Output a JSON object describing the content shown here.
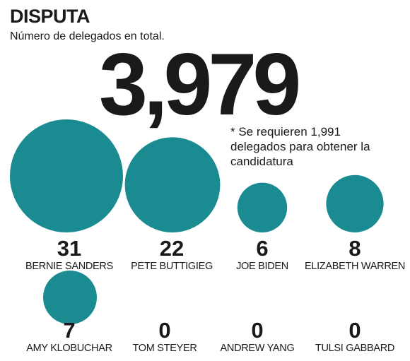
{
  "header": {
    "title": "DISPUTA",
    "subtitle": "Número de delegados en total.",
    "total": "3,979",
    "note": "* Se requieren 1,991 delegados para obtener la candidatura"
  },
  "chart_data": {
    "type": "bubble",
    "color": "#1a8c91",
    "candidates": [
      {
        "name": "BERNIE SANDERS",
        "label": "31",
        "value": 31
      },
      {
        "name": "PETE BUTTIGIEG",
        "label": "22",
        "value": 22
      },
      {
        "name": "JOE BIDEN",
        "label": "6",
        "value": 6
      },
      {
        "name": "ELIZABETH WARREN",
        "label": "8",
        "value": 8
      },
      {
        "name": "AMY KLOBUCHAR",
        "label": "7",
        "value": 7
      },
      {
        "name": "TOM STEYER",
        "label": "0",
        "value": 0
      },
      {
        "name": "ANDREW YANG",
        "label": "0",
        "value": 0
      },
      {
        "name": "TULSI GABBARD",
        "label": "0",
        "value": 0
      }
    ]
  }
}
